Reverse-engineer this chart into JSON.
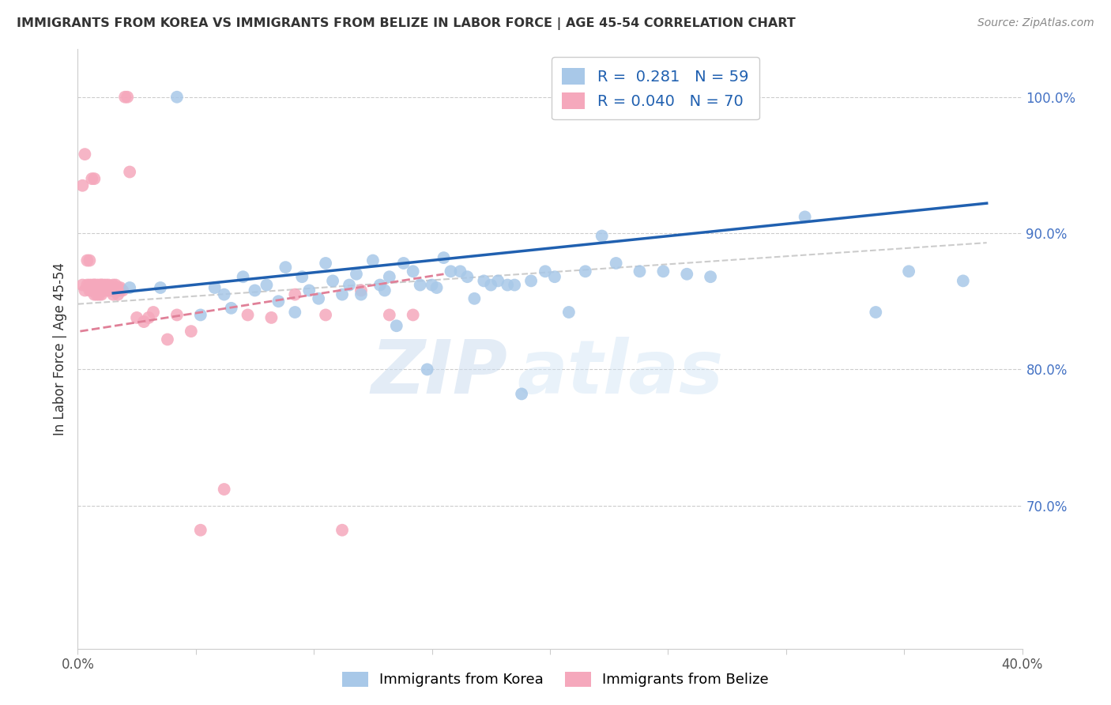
{
  "title": "IMMIGRANTS FROM KOREA VS IMMIGRANTS FROM BELIZE IN LABOR FORCE | AGE 45-54 CORRELATION CHART",
  "source": "Source: ZipAtlas.com",
  "ylabel": "In Labor Force | Age 45-54",
  "xlim": [
    0.0,
    0.4
  ],
  "ylim": [
    0.595,
    1.035
  ],
  "y_ticks_right": [
    0.7,
    0.8,
    0.9,
    1.0
  ],
  "y_tick_labels_right": [
    "70.0%",
    "80.0%",
    "90.0%",
    "100.0%"
  ],
  "korea_R": 0.281,
  "korea_N": 59,
  "belize_R": 0.04,
  "belize_N": 70,
  "korea_color": "#a8c8e8",
  "belize_color": "#f5a8bc",
  "korea_line_color": "#2060b0",
  "belize_line_color": "#e08098",
  "watermark_zip": "ZIP",
  "watermark_atlas": "atlas",
  "korea_x": [
    0.022,
    0.035,
    0.042,
    0.052,
    0.058,
    0.062,
    0.065,
    0.07,
    0.075,
    0.08,
    0.085,
    0.088,
    0.092,
    0.095,
    0.098,
    0.102,
    0.105,
    0.108,
    0.112,
    0.115,
    0.118,
    0.12,
    0.125,
    0.128,
    0.13,
    0.132,
    0.135,
    0.138,
    0.142,
    0.145,
    0.148,
    0.15,
    0.152,
    0.155,
    0.158,
    0.162,
    0.165,
    0.168,
    0.172,
    0.175,
    0.178,
    0.182,
    0.185,
    0.188,
    0.192,
    0.198,
    0.202,
    0.208,
    0.215,
    0.222,
    0.228,
    0.238,
    0.248,
    0.258,
    0.268,
    0.308,
    0.338,
    0.352,
    0.375
  ],
  "korea_y": [
    0.86,
    0.86,
    1.0,
    0.84,
    0.86,
    0.855,
    0.845,
    0.868,
    0.858,
    0.862,
    0.85,
    0.875,
    0.842,
    0.868,
    0.858,
    0.852,
    0.878,
    0.865,
    0.855,
    0.862,
    0.87,
    0.855,
    0.88,
    0.862,
    0.858,
    0.868,
    0.832,
    0.878,
    0.872,
    0.862,
    0.8,
    0.862,
    0.86,
    0.882,
    0.872,
    0.872,
    0.868,
    0.852,
    0.865,
    0.862,
    0.865,
    0.862,
    0.862,
    0.782,
    0.865,
    0.872,
    0.868,
    0.842,
    0.872,
    0.898,
    0.878,
    0.872,
    0.872,
    0.87,
    0.868,
    0.912,
    0.842,
    0.872,
    0.865
  ],
  "belize_x": [
    0.002,
    0.003,
    0.004,
    0.005,
    0.005,
    0.006,
    0.006,
    0.007,
    0.007,
    0.007,
    0.007,
    0.008,
    0.008,
    0.008,
    0.008,
    0.009,
    0.009,
    0.009,
    0.01,
    0.01,
    0.01,
    0.01,
    0.011,
    0.011,
    0.011,
    0.012,
    0.012,
    0.012,
    0.013,
    0.013,
    0.014,
    0.014,
    0.015,
    0.015,
    0.015,
    0.015,
    0.016,
    0.016,
    0.017,
    0.017,
    0.017,
    0.018,
    0.018,
    0.019,
    0.02,
    0.021,
    0.022,
    0.025,
    0.028,
    0.03,
    0.032,
    0.038,
    0.042,
    0.048,
    0.052,
    0.062,
    0.072,
    0.082,
    0.092,
    0.105,
    0.112,
    0.12,
    0.132,
    0.142,
    0.002,
    0.003,
    0.004,
    0.005,
    0.006,
    0.007
  ],
  "belize_y": [
    0.862,
    0.858,
    0.862,
    0.858,
    0.862,
    0.862,
    0.858,
    0.858,
    0.862,
    0.855,
    0.862,
    0.86,
    0.858,
    0.862,
    0.855,
    0.858,
    0.862,
    0.855,
    0.862,
    0.858,
    0.862,
    0.855,
    0.86,
    0.858,
    0.862,
    0.86,
    0.858,
    0.862,
    0.858,
    0.862,
    0.858,
    0.86,
    0.858,
    0.862,
    0.858,
    0.855,
    0.858,
    0.862,
    0.858,
    0.86,
    0.855,
    0.858,
    0.86,
    0.858,
    1.0,
    1.0,
    0.945,
    0.838,
    0.835,
    0.838,
    0.842,
    0.822,
    0.84,
    0.828,
    0.682,
    0.712,
    0.84,
    0.838,
    0.855,
    0.84,
    0.682,
    0.858,
    0.84,
    0.84,
    0.935,
    0.958,
    0.88,
    0.88,
    0.94,
    0.94
  ]
}
